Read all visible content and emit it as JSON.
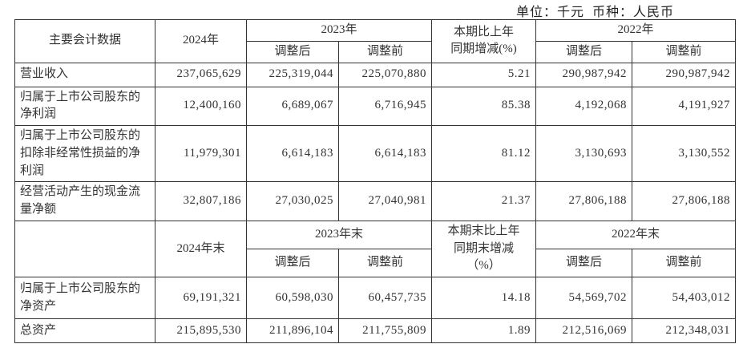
{
  "meta": {
    "unit_label": "单位：千元  币种：人民币"
  },
  "table1": {
    "header": {
      "main": "主要会计数据",
      "y2024": "2024年",
      "y2023": "2023年",
      "adj_after_2023": "调整后",
      "adj_before_2023": "调整前",
      "change": "本期比上年\n同期增减(%)",
      "y2022": "2022年",
      "adj_after_2022": "调整后",
      "adj_before_2022": "调整前"
    },
    "rows": [
      {
        "label": "营业收入",
        "v2024": "237,065,629",
        "v2023_after": "225,319,044",
        "v2023_before": "225,070,880",
        "change": "5.21",
        "v2022_after": "290,987,942",
        "v2022_before": "290,987,942"
      },
      {
        "label": "归属于上市公司股东的净利润",
        "v2024": "12,400,160",
        "v2023_after": "6,689,067",
        "v2023_before": "6,716,945",
        "change": "85.38",
        "v2022_after": "4,192,068",
        "v2022_before": "4,191,927"
      },
      {
        "label": "归属于上市公司股东的扣除非经常性损益的净利润",
        "v2024": "11,979,301",
        "v2023_after": "6,614,183",
        "v2023_before": "6,614,183",
        "change": "81.12",
        "v2022_after": "3,130,693",
        "v2022_before": "3,130,552"
      },
      {
        "label": "经营活动产生的现金流量净额",
        "v2024": "32,807,186",
        "v2023_after": "27,030,025",
        "v2023_before": "27,040,981",
        "change": "21.37",
        "v2022_after": "27,806,188",
        "v2022_before": "27,806,188"
      }
    ]
  },
  "table2": {
    "header": {
      "main": "",
      "y2024": "2024年末",
      "y2023": "2023年末",
      "adj_after_2023": "调整后",
      "adj_before_2023": "调整前",
      "change": "本期末比上年\n同期末增减\n（%）",
      "y2022": "2022年末",
      "adj_after_2022": "调整后",
      "adj_before_2022": "调整前"
    },
    "rows": [
      {
        "label": "归属于上市公司股东的净资产",
        "v2024": "69,191,321",
        "v2023_after": "60,598,030",
        "v2023_before": "60,457,735",
        "change": "14.18",
        "v2022_after": "54,569,702",
        "v2022_before": "54,403,012"
      },
      {
        "label": "总资产",
        "v2024": "215,895,530",
        "v2023_after": "211,896,104",
        "v2023_before": "211,755,809",
        "change": "1.89",
        "v2022_after": "212,516,069",
        "v2022_before": "212,348,031"
      }
    ]
  }
}
